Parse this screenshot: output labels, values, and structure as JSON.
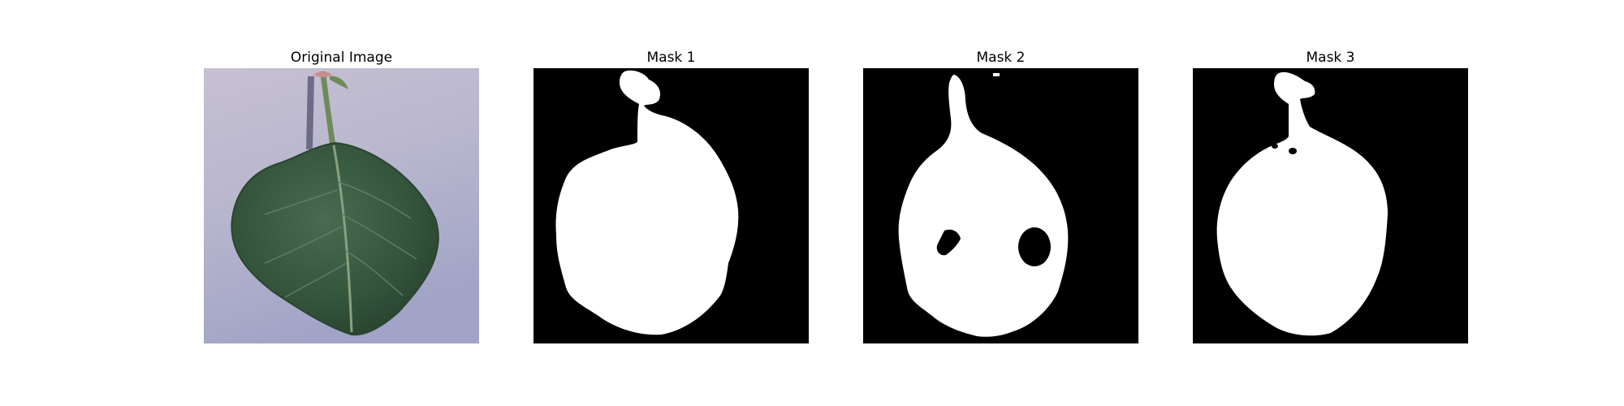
{
  "panels": [
    {
      "title": "Original Image",
      "type": "photo",
      "subject": "green leaf on lavender background"
    },
    {
      "title": "Mask 1",
      "type": "mask"
    },
    {
      "title": "Mask 2",
      "type": "mask"
    },
    {
      "title": "Mask 3",
      "type": "mask"
    }
  ],
  "colors": {
    "mask_background": "#000000",
    "mask_foreground": "#ffffff",
    "photo_background": "#b7b3cc",
    "leaf": "#3b5e43",
    "stem": "#5c7a4d"
  }
}
